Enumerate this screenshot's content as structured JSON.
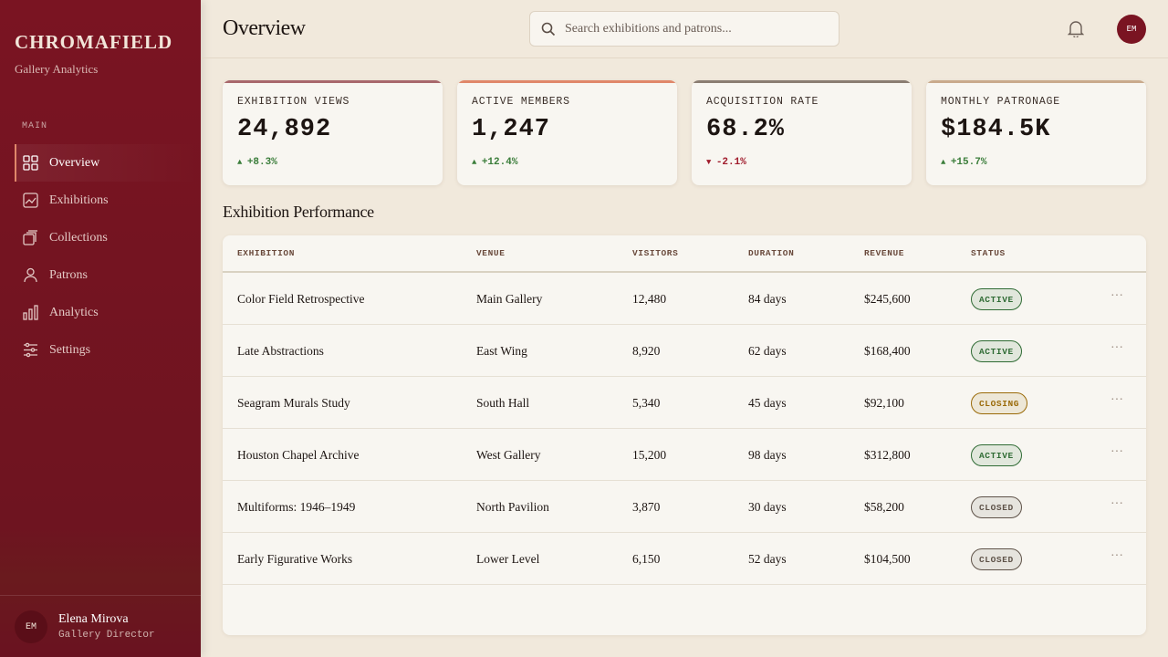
{
  "sidebar": {
    "brand": "CHROMAFIELD",
    "subtitle": "Gallery Analytics",
    "section": "MAIN",
    "nav": [
      "Overview",
      "Exhibitions",
      "Collections",
      "Patrons",
      "Analytics",
      "Settings"
    ],
    "user": {
      "initials": "EM",
      "name": "Elena Mirova",
      "role": "Gallery Director"
    }
  },
  "header": {
    "title": "Overview",
    "search_placeholder": "Search exhibitions and patrons...",
    "avatar": "EM"
  },
  "kpis": [
    {
      "label": "EXHIBITION VIEWS",
      "value": "24,892",
      "change": "+8.3%",
      "trend": "up",
      "color": "#a8686c"
    },
    {
      "label": "ACTIVE MEMBERS",
      "value": "1,247",
      "change": "+12.4%",
      "trend": "up",
      "color": "#e0876a"
    },
    {
      "label": "ACQUISITION RATE",
      "value": "68.2%",
      "change": "-2.1%",
      "trend": "down",
      "color": "#8a7d72"
    },
    {
      "label": "MONTHLY PATRONAGE",
      "value": "$184.5K",
      "change": "+15.7%",
      "trend": "up",
      "color": "#c9aa8c"
    }
  ],
  "section_title": "Exhibition Performance",
  "table": {
    "columns": [
      "EXHIBITION",
      "VENUE",
      "VISITORS",
      "DURATION",
      "REVENUE",
      "STATUS"
    ],
    "rows": [
      {
        "exhibition": "Color Field Retrospective",
        "venue": "Main Gallery",
        "visitors": "12,480",
        "duration": "84 days",
        "revenue": "$245,600",
        "status": "ACTIVE",
        "status_color": "#2f6b34"
      },
      {
        "exhibition": "Late Abstractions",
        "venue": "East Wing",
        "visitors": "8,920",
        "duration": "62 days",
        "revenue": "$168,400",
        "status": "ACTIVE",
        "status_color": "#2f6b34"
      },
      {
        "exhibition": "Seagram Murals Study",
        "venue": "South Hall",
        "visitors": "5,340",
        "duration": "45 days",
        "revenue": "$92,100",
        "status": "CLOSING",
        "status_color": "#9a6a08"
      },
      {
        "exhibition": "Houston Chapel Archive",
        "venue": "West Gallery",
        "visitors": "15,200",
        "duration": "98 days",
        "revenue": "$312,800",
        "status": "ACTIVE",
        "status_color": "#2f6b34"
      },
      {
        "exhibition": "Multiforms: 1946–1949",
        "venue": "North Pavilion",
        "visitors": "3,870",
        "duration": "30 days",
        "revenue": "$58,200",
        "status": "CLOSED",
        "status_color": "#5e5248"
      },
      {
        "exhibition": "Early Figurative Works",
        "venue": "Lower Level",
        "visitors": "6,150",
        "duration": "52 days",
        "revenue": "$104,500",
        "status": "CLOSED",
        "status_color": "#5e5248"
      }
    ]
  }
}
